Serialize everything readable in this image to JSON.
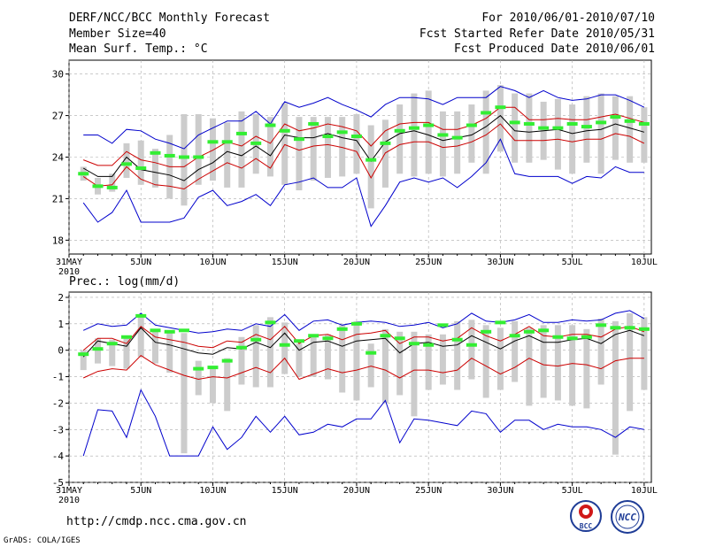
{
  "header": {
    "title": "DERF/NCC/BCC Monthly Forecast",
    "member_size": "Member Size=40",
    "variable": "Mean Surf. Temp.: °C",
    "forecast_period": "For 2010/06/01-2010/07/10",
    "started_refer": "Fcst Started Refer Date 2010/05/31",
    "produced": "Fcst Produced Date 2010/06/01"
  },
  "colors": {
    "ensemble_max_min": "#0000cc",
    "spread": "#cc0000",
    "mean": "#000000",
    "observed": "#33ee33",
    "members_range": "#cccccc",
    "grid": "#aaaaaa"
  },
  "x_axis": {
    "tick_labels": [
      "31MAY",
      "5JUN",
      "10JUN",
      "15JUN",
      "20JUN",
      "25JUN",
      "30JUN",
      "5JUL",
      "10JUL"
    ],
    "tick_days": [
      0,
      5,
      10,
      15,
      20,
      25,
      30,
      35,
      40
    ],
    "year_label": "2010"
  },
  "panel2_label": "Prec.: log(mm/d)",
  "footer": {
    "url": "http://cmdp.ncc.cma.gov.cn",
    "credit": "GrADS: COLA/IGES",
    "logo_bcc": "BCC",
    "logo_ncc": "NCC"
  },
  "chart_data": [
    {
      "type": "line",
      "title": "Mean Surf. Temp.: °C",
      "x_unit": "day since 31 May 2010",
      "ylim": [
        17,
        31
      ],
      "y_ticks": [
        18,
        21,
        24,
        27,
        30
      ],
      "x": [
        1,
        2,
        3,
        4,
        5,
        6,
        7,
        8,
        9,
        10,
        11,
        12,
        13,
        14,
        15,
        16,
        17,
        18,
        19,
        20,
        21,
        22,
        23,
        24,
        25,
        26,
        27,
        28,
        29,
        30,
        31,
        32,
        33,
        34,
        35,
        36,
        37,
        38,
        39,
        40
      ],
      "series": [
        {
          "name": "ensemble max",
          "color": "#0000cc",
          "values": [
            25.6,
            25.6,
            25.0,
            26.0,
            25.9,
            25.3,
            25.0,
            24.6,
            25.6,
            26.1,
            26.6,
            26.6,
            27.3,
            26.4,
            28.0,
            27.6,
            27.9,
            28.3,
            27.8,
            27.4,
            26.9,
            27.8,
            28.3,
            28.3,
            28.2,
            27.8,
            28.3,
            28.3,
            28.3,
            29.1,
            28.8,
            28.3,
            28.8,
            28.3,
            28.1,
            28.2,
            28.5,
            28.5,
            28.1,
            27.6
          ]
        },
        {
          "name": "mean + 1 sd",
          "color": "#cc0000",
          "values": [
            23.8,
            23.4,
            23.4,
            24.4,
            23.8,
            23.6,
            23.3,
            23.3,
            24.0,
            24.5,
            25.1,
            24.8,
            25.5,
            25.0,
            26.4,
            25.9,
            26.1,
            26.4,
            26.2,
            25.9,
            24.8,
            25.9,
            26.4,
            26.5,
            26.5,
            26.0,
            26.0,
            26.3,
            26.8,
            27.6,
            27.6,
            26.7,
            26.7,
            26.8,
            26.7,
            26.7,
            26.9,
            27.1,
            26.8,
            26.5
          ]
        },
        {
          "name": "ensemble mean",
          "color": "#000000",
          "values": [
            23.2,
            22.6,
            22.6,
            24.0,
            23.1,
            22.9,
            22.7,
            22.3,
            23.1,
            23.6,
            24.4,
            24.1,
            24.8,
            24.1,
            25.6,
            25.4,
            25.4,
            25.7,
            25.4,
            25.2,
            23.7,
            25.1,
            25.7,
            25.9,
            25.6,
            25.2,
            25.4,
            25.6,
            26.2,
            27.0,
            25.9,
            25.8,
            25.9,
            26.0,
            25.7,
            25.9,
            26.0,
            26.4,
            26.1,
            25.8
          ]
        },
        {
          "name": "mean - 1 sd",
          "color": "#cc0000",
          "values": [
            22.6,
            21.9,
            22.0,
            23.3,
            22.4,
            22.0,
            21.9,
            21.7,
            22.4,
            23.0,
            23.6,
            23.2,
            23.9,
            23.2,
            24.9,
            24.5,
            24.8,
            24.9,
            24.7,
            24.4,
            22.5,
            24.3,
            24.9,
            25.1,
            25.1,
            24.7,
            24.8,
            25.1,
            25.6,
            26.4,
            25.2,
            25.2,
            25.2,
            25.3,
            25.1,
            25.3,
            25.3,
            25.7,
            25.5,
            25.0
          ]
        },
        {
          "name": "ensemble min",
          "color": "#0000cc",
          "values": [
            20.7,
            19.3,
            20.0,
            21.6,
            19.3,
            19.3,
            19.3,
            19.6,
            21.1,
            21.6,
            20.5,
            20.8,
            21.3,
            20.5,
            22.0,
            22.2,
            22.5,
            21.8,
            21.8,
            22.5,
            19.0,
            20.5,
            22.2,
            22.5,
            22.2,
            22.5,
            21.8,
            22.6,
            23.6,
            25.3,
            22.8,
            22.6,
            22.6,
            22.6,
            22.1,
            22.6,
            22.5,
            23.3,
            22.9,
            22.9
          ]
        }
      ],
      "observed": [
        22.8,
        21.9,
        21.8,
        23.5,
        23.2,
        24.3,
        24.1,
        24.0,
        24.0,
        25.1,
        25.1,
        25.7,
        25.0,
        26.3,
        25.9,
        25.3,
        26.4,
        25.5,
        25.8,
        25.5,
        23.8,
        25.0,
        25.9,
        26.1,
        26.3,
        25.6,
        25.4,
        26.3,
        27.2,
        27.6,
        26.5,
        26.4,
        26.1,
        26.1,
        26.4,
        26.2,
        26.5,
        26.9,
        26.6,
        26.4
      ],
      "members_range_bars": [
        [
          22.3,
          23.3
        ],
        [
          21.3,
          22.5
        ],
        [
          21.5,
          22.8
        ],
        [
          22.5,
          25.0
        ],
        [
          22.0,
          25.2
        ],
        [
          21.8,
          24.6
        ],
        [
          21.0,
          25.6
        ],
        [
          20.5,
          27.1
        ],
        [
          22.0,
          27.1
        ],
        [
          22.3,
          26.8
        ],
        [
          21.8,
          26.5
        ],
        [
          21.8,
          27.3
        ],
        [
          22.8,
          27.1
        ],
        [
          22.6,
          26.9
        ],
        [
          22.0,
          27.9
        ],
        [
          21.6,
          26.9
        ],
        [
          22.3,
          26.9
        ],
        [
          22.5,
          26.9
        ],
        [
          22.6,
          26.9
        ],
        [
          22.8,
          27.1
        ],
        [
          20.3,
          26.3
        ],
        [
          21.8,
          26.7
        ],
        [
          22.8,
          27.8
        ],
        [
          22.6,
          28.6
        ],
        [
          22.8,
          28.8
        ],
        [
          22.6,
          27.3
        ],
        [
          22.8,
          27.3
        ],
        [
          23.6,
          27.8
        ],
        [
          22.8,
          28.8
        ],
        [
          24.4,
          29.2
        ],
        [
          23.6,
          28.6
        ],
        [
          23.6,
          28.6
        ],
        [
          23.8,
          28.0
        ],
        [
          23.1,
          28.2
        ],
        [
          22.8,
          27.8
        ],
        [
          23.6,
          28.4
        ],
        [
          22.8,
          28.6
        ],
        [
          23.8,
          28.4
        ],
        [
          23.6,
          28.4
        ],
        [
          23.6,
          27.6
        ]
      ]
    },
    {
      "type": "line",
      "title": "Prec.: log(mm/d)",
      "x_unit": "day since 31 May 2010",
      "ylim": [
        -5,
        2.2
      ],
      "y_ticks": [
        -5,
        -4,
        -3,
        -2,
        -1,
        0,
        1,
        2
      ],
      "x": [
        1,
        2,
        3,
        4,
        5,
        6,
        7,
        8,
        9,
        10,
        11,
        12,
        13,
        14,
        15,
        16,
        17,
        18,
        19,
        20,
        21,
        22,
        23,
        24,
        25,
        26,
        27,
        28,
        29,
        30,
        31,
        32,
        33,
        34,
        35,
        36,
        37,
        38,
        39,
        40
      ],
      "series": [
        {
          "name": "ensemble max",
          "color": "#0000cc",
          "values": [
            0.75,
            1.0,
            0.9,
            0.95,
            1.4,
            0.95,
            0.85,
            0.75,
            0.65,
            0.7,
            0.8,
            0.75,
            1.0,
            0.9,
            1.35,
            0.75,
            1.1,
            1.15,
            0.95,
            1.05,
            1.1,
            1.05,
            0.9,
            0.95,
            1.05,
            0.85,
            1.0,
            1.4,
            1.1,
            1.05,
            1.15,
            1.35,
            1.05,
            1.05,
            1.15,
            1.1,
            1.15,
            1.4,
            1.5,
            1.2
          ]
        },
        {
          "name": "mean + 1 sd",
          "color": "#cc0000",
          "values": [
            0.0,
            0.45,
            0.45,
            0.25,
            0.9,
            0.5,
            0.4,
            0.3,
            0.15,
            0.1,
            0.35,
            0.3,
            0.6,
            0.4,
            0.9,
            0.25,
            0.55,
            0.6,
            0.4,
            0.6,
            0.65,
            0.75,
            0.25,
            0.5,
            0.5,
            0.35,
            0.45,
            0.85,
            0.55,
            0.35,
            0.6,
            0.9,
            0.55,
            0.5,
            0.6,
            0.6,
            0.5,
            0.8,
            0.9,
            0.7
          ]
        },
        {
          "name": "ensemble mean",
          "color": "#000000",
          "values": [
            -0.25,
            0.35,
            0.25,
            0.15,
            0.85,
            0.3,
            0.2,
            0.05,
            -0.1,
            -0.15,
            0.1,
            0.05,
            0.3,
            0.1,
            0.65,
            0.0,
            0.3,
            0.35,
            0.15,
            0.35,
            0.4,
            0.45,
            -0.1,
            0.25,
            0.3,
            0.15,
            0.2,
            0.55,
            0.3,
            0.05,
            0.35,
            0.55,
            0.3,
            0.3,
            0.4,
            0.45,
            0.25,
            0.6,
            0.75,
            0.55
          ]
        },
        {
          "name": "mean - 1 sd",
          "color": "#cc0000",
          "values": [
            -1.05,
            -0.8,
            -0.7,
            -0.75,
            -0.2,
            -0.55,
            -0.75,
            -0.95,
            -1.1,
            -1.0,
            -1.05,
            -0.85,
            -0.65,
            -0.85,
            -0.3,
            -1.1,
            -0.9,
            -0.7,
            -0.85,
            -0.75,
            -0.6,
            -0.75,
            -1.05,
            -0.75,
            -0.75,
            -0.85,
            -0.75,
            -0.3,
            -0.6,
            -0.9,
            -0.65,
            -0.3,
            -0.55,
            -0.6,
            -0.5,
            -0.55,
            -0.7,
            -0.4,
            -0.3,
            -0.3
          ]
        },
        {
          "name": "ensemble min",
          "color": "#0000cc",
          "values": [
            -4.0,
            -2.25,
            -2.3,
            -3.3,
            -1.5,
            -2.5,
            -4.0,
            -4.0,
            -4.0,
            -2.9,
            -3.75,
            -3.3,
            -2.5,
            -3.1,
            -2.5,
            -3.2,
            -3.1,
            -2.8,
            -2.9,
            -2.6,
            -2.6,
            -1.9,
            -3.5,
            -2.6,
            -2.65,
            -2.75,
            -2.85,
            -2.3,
            -2.4,
            -3.1,
            -2.65,
            -2.65,
            -3.0,
            -2.8,
            -2.9,
            -2.9,
            -3.0,
            -3.3,
            -2.9,
            -3.0
          ]
        }
      ],
      "observed": [
        -0.15,
        0.05,
        0.25,
        0.5,
        1.3,
        0.75,
        0.7,
        0.75,
        -0.7,
        -0.65,
        -0.4,
        0.1,
        0.4,
        1.05,
        0.2,
        0.35,
        0.55,
        0.45,
        0.8,
        1.0,
        -0.1,
        0.55,
        0.45,
        0.25,
        0.2,
        0.95,
        0.4,
        0.2,
        0.7,
        1.05,
        0.55,
        0.7,
        0.75,
        0.5,
        0.45,
        0.5,
        0.95,
        0.85,
        0.85,
        0.8
      ],
      "members_range_bars": [
        [
          -0.75,
          0.0
        ],
        [
          -0.5,
          0.45
        ],
        [
          -0.6,
          0.4
        ],
        [
          -0.7,
          0.55
        ],
        [
          -0.25,
          1.3
        ],
        [
          -0.5,
          0.75
        ],
        [
          -0.85,
          0.65
        ],
        [
          -3.9,
          0.65
        ],
        [
          -1.7,
          -0.4
        ],
        [
          -2.0,
          -0.6
        ],
        [
          -2.3,
          -0.3
        ],
        [
          -1.3,
          0.5
        ],
        [
          -1.4,
          0.95
        ],
        [
          -1.4,
          1.25
        ],
        [
          -0.9,
          1.05
        ],
        [
          -1.0,
          0.25
        ],
        [
          -1.0,
          0.6
        ],
        [
          -1.1,
          0.6
        ],
        [
          -1.6,
          0.95
        ],
        [
          -1.9,
          1.1
        ],
        [
          -1.4,
          0.25
        ],
        [
          -2.0,
          0.8
        ],
        [
          -1.7,
          0.7
        ],
        [
          -2.5,
          0.7
        ],
        [
          -1.5,
          0.6
        ],
        [
          -1.3,
          0.6
        ],
        [
          -1.5,
          1.1
        ],
        [
          -1.1,
          1.15
        ],
        [
          -1.8,
          0.95
        ],
        [
          -1.5,
          0.85
        ],
        [
          -1.2,
          1.1
        ],
        [
          -2.1,
          0.85
        ],
        [
          -1.8,
          0.95
        ],
        [
          -1.9,
          0.95
        ],
        [
          -2.1,
          0.95
        ],
        [
          -2.2,
          0.8
        ],
        [
          -1.3,
          1.2
        ],
        [
          -3.95,
          1.1
        ],
        [
          -2.3,
          1.4
        ],
        [
          -1.5,
          1.25
        ]
      ]
    }
  ]
}
